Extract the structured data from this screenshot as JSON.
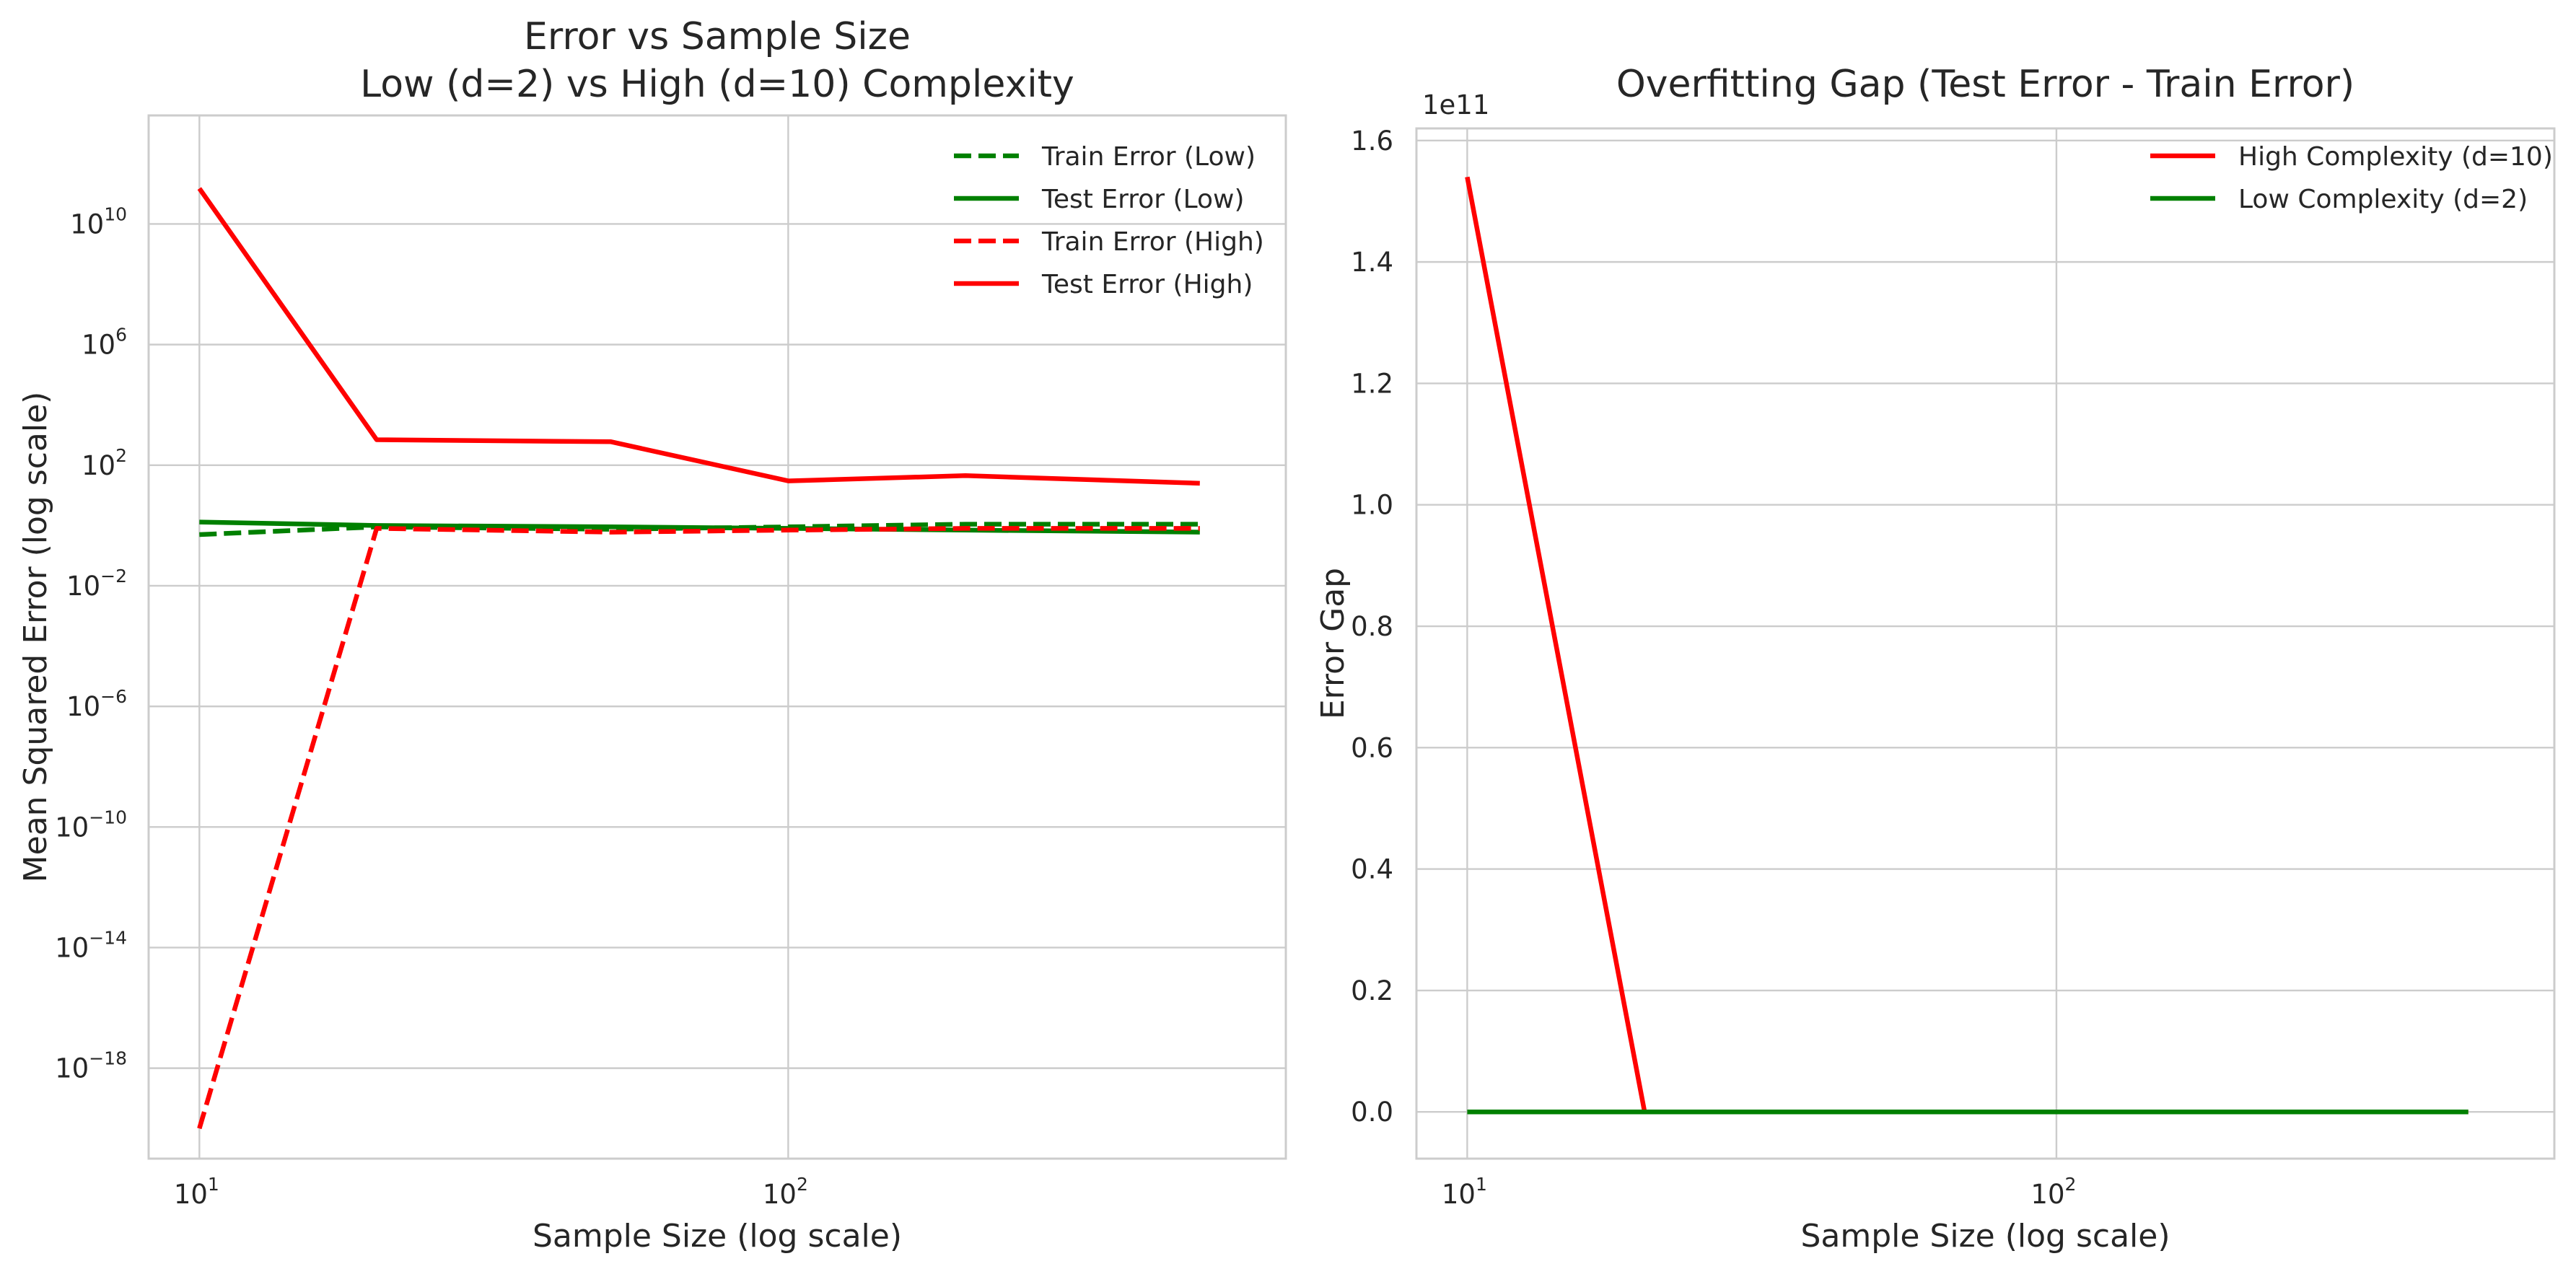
{
  "chart_data": [
    {
      "type": "line",
      "title": [
        "Error vs Sample Size",
        "Low (d=2) vs High (d=10) Complexity"
      ],
      "xlabel": "Sample Size (log scale)",
      "ylabel": "Mean Squared Error (log scale)",
      "xscale": "log",
      "yscale": "log",
      "xlim": [
        8.2,
        700
      ],
      "ylim_log10": [
        -21,
        13.6
      ],
      "xticks": [
        {
          "base": "10",
          "exp": "1"
        },
        {
          "base": "10",
          "exp": "2"
        }
      ],
      "yticks": [
        {
          "base": "10",
          "exp": "10",
          "value": 10
        },
        {
          "base": "10",
          "exp": "6",
          "value": 6
        },
        {
          "base": "10",
          "exp": "2",
          "value": 2
        },
        {
          "base": "10",
          "exp": "−2",
          "value": -2
        },
        {
          "base": "10",
          "exp": "−6",
          "value": -6
        },
        {
          "base": "10",
          "exp": "−10",
          "value": -10
        },
        {
          "base": "10",
          "exp": "−14",
          "value": -14
        },
        {
          "base": "10",
          "exp": "−18",
          "value": -18
        }
      ],
      "grid": true,
      "legend_position": "top-right",
      "x": [
        10,
        20,
        50,
        100,
        200,
        500
      ],
      "series": [
        {
          "name": "Train Error (Low)",
          "color": "#008000",
          "dash": true,
          "values": [
            0.5,
            0.9,
            0.75,
            0.9,
            1.1,
            1.1
          ]
        },
        {
          "name": "Test Error (Low)",
          "color": "#008000",
          "dash": false,
          "values": [
            1.3,
            1.0,
            0.9,
            0.8,
            0.7,
            0.6
          ]
        },
        {
          "name": "Train Error (High)",
          "color": "#ff0000",
          "dash": true,
          "values": [
            1e-20,
            0.8,
            0.6,
            0.7,
            0.8,
            0.8
          ]
        },
        {
          "name": "Test Error (High)",
          "color": "#ff0000",
          "dash": false,
          "values": [
            150000000000.0,
            700,
            600,
            30,
            45,
            25
          ]
        }
      ]
    },
    {
      "type": "line",
      "title": [
        "Overfitting Gap (Test Error - Train Error)"
      ],
      "xlabel": "Sample Size (log scale)",
      "ylabel": "Error Gap",
      "xscale": "log",
      "yscale": "linear",
      "offset_text": "1e11",
      "xlim": [
        8.2,
        700
      ],
      "ylim": [
        -0.077,
        1.62
      ],
      "xticks": [
        {
          "base": "10",
          "exp": "1"
        },
        {
          "base": "10",
          "exp": "2"
        }
      ],
      "yticks": [
        "0.0",
        "0.2",
        "0.4",
        "0.6",
        "0.8",
        "1.0",
        "1.2",
        "1.4",
        "1.6"
      ],
      "grid": true,
      "legend_position": "top-right",
      "x": [
        10,
        20,
        50,
        100,
        200,
        500
      ],
      "series": [
        {
          "name": "High Complexity (d=10)",
          "color": "#ff0000",
          "dash": false,
          "values": [
            1.54,
            0.0,
            0.0,
            0.0,
            0.0,
            0.0
          ]
        },
        {
          "name": "Low Complexity (d=2)",
          "color": "#008000",
          "dash": false,
          "values": [
            0.0,
            0.0,
            0.0,
            0.0,
            0.0,
            0.0
          ]
        }
      ]
    }
  ]
}
